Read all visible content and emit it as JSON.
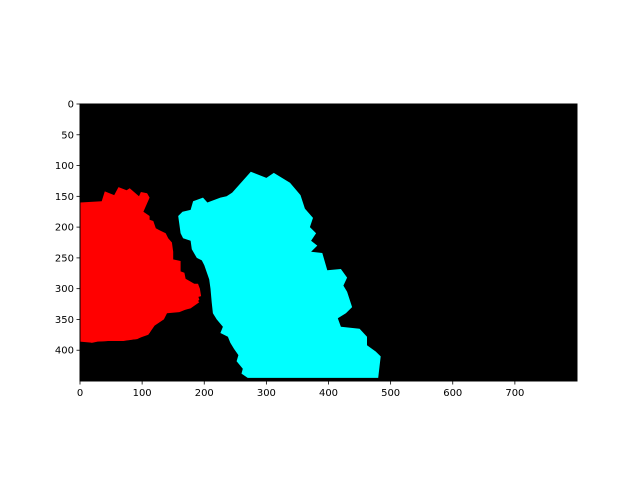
{
  "figure": {
    "background": "#ffffff",
    "image_background": "#000000",
    "x_ticks": [
      "0",
      "100",
      "200",
      "300",
      "400",
      "500",
      "600",
      "700"
    ],
    "y_ticks": [
      "0",
      "50",
      "100",
      "150",
      "200",
      "250",
      "300",
      "350",
      "400"
    ]
  },
  "segmentation": {
    "width": 800,
    "height": 450,
    "regions": [
      {
        "name": "red-region",
        "color": "#ff0000",
        "points": [
          [
            0,
            160
          ],
          [
            35,
            158
          ],
          [
            40,
            142
          ],
          [
            55,
            148
          ],
          [
            62,
            135
          ],
          [
            75,
            140
          ],
          [
            80,
            137
          ],
          [
            95,
            150
          ],
          [
            98,
            143
          ],
          [
            108,
            145
          ],
          [
            112,
            152
          ],
          [
            102,
            175
          ],
          [
            112,
            182
          ],
          [
            112,
            188
          ],
          [
            118,
            190
          ],
          [
            122,
            202
          ],
          [
            128,
            205
          ],
          [
            138,
            210
          ],
          [
            142,
            218
          ],
          [
            148,
            225
          ],
          [
            140,
            232
          ],
          [
            132,
            238
          ],
          [
            138,
            248
          ],
          [
            148,
            252
          ],
          [
            162,
            255
          ],
          [
            162,
            272
          ],
          [
            168,
            274
          ],
          [
            170,
            284
          ],
          [
            184,
            292
          ],
          [
            190,
            292
          ],
          [
            193,
            300
          ],
          [
            195,
            312
          ],
          [
            185,
            315
          ],
          [
            192,
            322
          ],
          [
            178,
            332
          ],
          [
            170,
            334
          ],
          [
            152,
            334
          ],
          [
            142,
            338
          ],
          [
            120,
            356
          ],
          [
            112,
            372
          ],
          [
            92,
            382
          ],
          [
            68,
            384
          ],
          [
            45,
            385
          ],
          [
            28,
            386
          ],
          [
            20,
            388
          ],
          [
            0,
            386
          ]
        ]
      },
      {
        "name": "red-region-lower",
        "color": "#ff0000",
        "points": [
          [
            0,
            262
          ],
          [
            12,
            268
          ],
          [
            18,
            260
          ],
          [
            32,
            258
          ],
          [
            40,
            255
          ],
          [
            55,
            252
          ],
          [
            70,
            250
          ],
          [
            85,
            245
          ],
          [
            95,
            238
          ],
          [
            108,
            240
          ],
          [
            112,
            235
          ],
          [
            122,
            228
          ],
          [
            135,
            218
          ],
          [
            148,
            225
          ],
          [
            150,
            240
          ],
          [
            150,
            268
          ],
          [
            158,
            268
          ],
          [
            162,
            275
          ],
          [
            168,
            285
          ],
          [
            175,
            290
          ],
          [
            178,
            300
          ],
          [
            188,
            305
          ],
          [
            192,
            318
          ],
          [
            180,
            330
          ],
          [
            160,
            338
          ],
          [
            140,
            340
          ],
          [
            135,
            350
          ],
          [
            120,
            360
          ],
          [
            110,
            375
          ],
          [
            90,
            382
          ],
          [
            70,
            385
          ],
          [
            45,
            385
          ],
          [
            25,
            386
          ],
          [
            18,
            388
          ],
          [
            10,
            380
          ],
          [
            0,
            372
          ]
        ]
      },
      {
        "name": "cyan-region",
        "color": "#00ffff",
        "points": [
          [
            158,
            182
          ],
          [
            165,
            175
          ],
          [
            178,
            172
          ],
          [
            182,
            158
          ],
          [
            198,
            152
          ],
          [
            205,
            160
          ],
          [
            226,
            152
          ],
          [
            236,
            150
          ],
          [
            245,
            144
          ],
          [
            275,
            110
          ],
          [
            300,
            120
          ],
          [
            312,
            112
          ],
          [
            338,
            128
          ],
          [
            355,
            148
          ],
          [
            362,
            170
          ],
          [
            375,
            185
          ],
          [
            370,
            200
          ],
          [
            380,
            210
          ],
          [
            372,
            222
          ],
          [
            382,
            230
          ],
          [
            372,
            240
          ],
          [
            390,
            242
          ],
          [
            398,
            270
          ],
          [
            420,
            268
          ],
          [
            430,
            282
          ],
          [
            424,
            295
          ],
          [
            430,
            305
          ],
          [
            438,
            330
          ],
          [
            428,
            340
          ],
          [
            415,
            348
          ],
          [
            420,
            362
          ],
          [
            450,
            365
          ],
          [
            462,
            378
          ],
          [
            462,
            392
          ],
          [
            476,
            402
          ],
          [
            484,
            410
          ],
          [
            480,
            445
          ],
          [
            270,
            445
          ],
          [
            260,
            438
          ],
          [
            262,
            430
          ],
          [
            252,
            418
          ],
          [
            255,
            408
          ],
          [
            248,
            398
          ],
          [
            242,
            388
          ],
          [
            238,
            378
          ],
          [
            226,
            372
          ],
          [
            230,
            362
          ],
          [
            220,
            350
          ],
          [
            214,
            340
          ],
          [
            212,
            322
          ],
          [
            210,
            300
          ],
          [
            208,
            285
          ],
          [
            200,
            262
          ],
          [
            196,
            254
          ],
          [
            188,
            250
          ],
          [
            180,
            236
          ],
          [
            178,
            222
          ],
          [
            166,
            218
          ],
          [
            162,
            210
          ],
          [
            160,
            196
          ]
        ]
      }
    ]
  }
}
